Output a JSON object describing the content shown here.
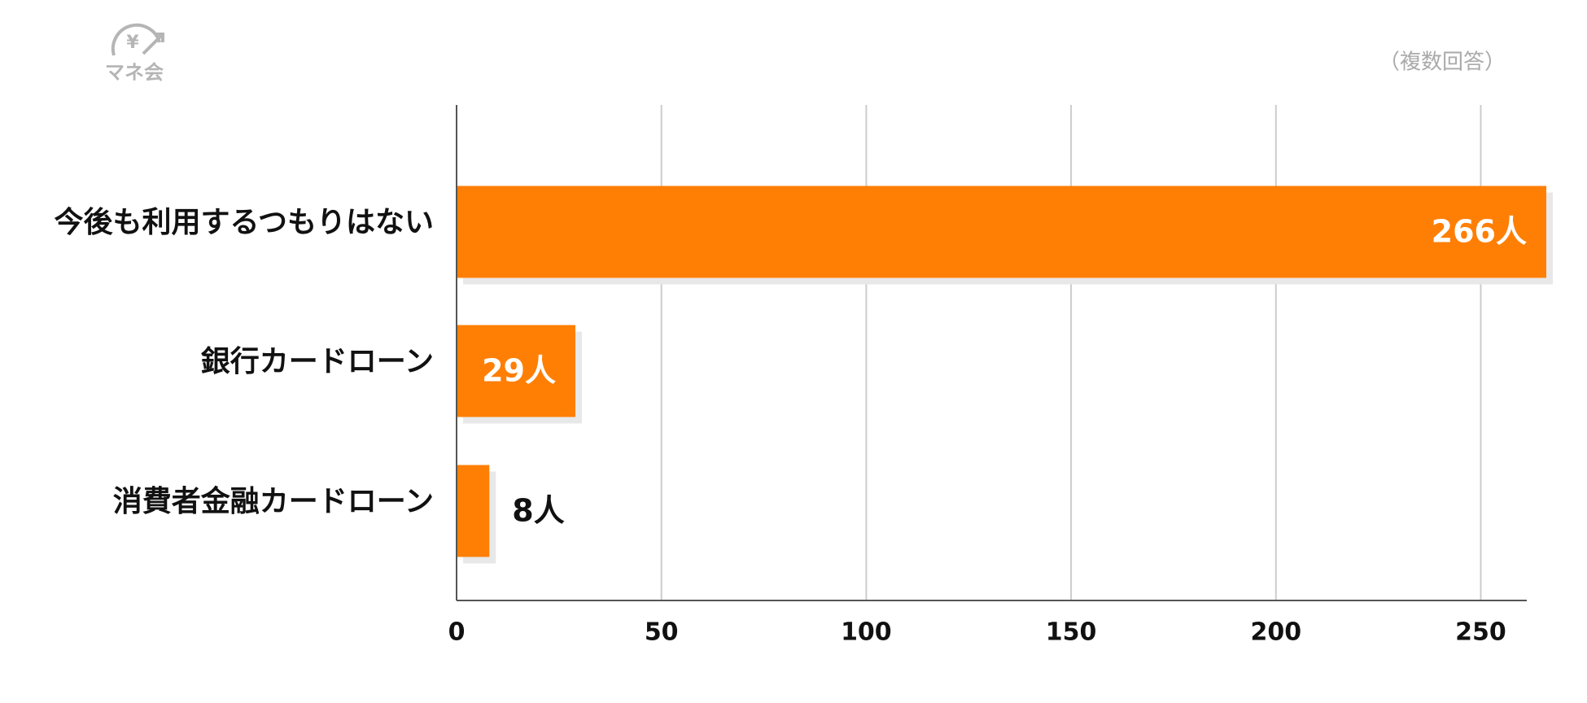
{
  "chart_data": {
    "type": "barh",
    "logo": "マネ会",
    "note": "（複数回答）",
    "categories": [
      "今後も利用するつもりはない",
      "銀行カードローン",
      "消費者金融カードローン"
    ],
    "values": [
      266,
      29,
      8
    ],
    "value_labels": [
      "266人",
      "29人",
      "8人"
    ],
    "color": "#ff7f05",
    "xlim": [
      0,
      266
    ],
    "xticks": [
      0,
      50,
      100,
      150,
      200,
      250
    ],
    "grid": true
  }
}
